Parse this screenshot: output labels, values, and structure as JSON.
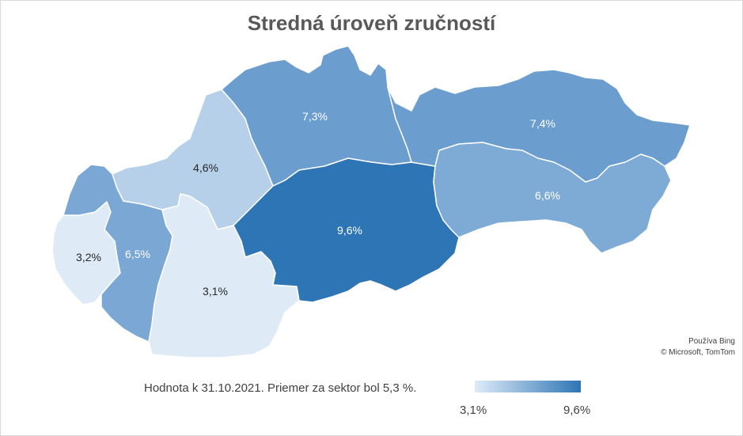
{
  "title": "Stredná úroveň zručností",
  "caption": "Hodnota k 31.10.2021. Priemer za sektor bol 5,3 %.",
  "attribution": {
    "line1": "Používa Bing",
    "line2": "© Microsoft, TomTom"
  },
  "legend": {
    "min_label": "3,1%",
    "max_label": "9,6%",
    "min_color": "#deebf7",
    "max_color": "#2e75b6"
  },
  "regions": [
    {
      "id": "bratislava",
      "value_label": "3,2%",
      "value": 3.2,
      "color": "#deebf7",
      "label_color": "#262626"
    },
    {
      "id": "trnava",
      "value_label": "6,5%",
      "value": 6.5,
      "color": "#7ba7d4",
      "label_color": "#ffffff"
    },
    {
      "id": "trencin",
      "value_label": "4,6%",
      "value": 4.6,
      "color": "#b6d0ea",
      "label_color": "#262626"
    },
    {
      "id": "nitra",
      "value_label": "3,1%",
      "value": 3.1,
      "color": "#deebf7",
      "label_color": "#262626"
    },
    {
      "id": "zilina",
      "value_label": "7,3%",
      "value": 7.3,
      "color": "#6b9dcf",
      "label_color": "#ffffff"
    },
    {
      "id": "banska-bystrica",
      "value_label": "9,6%",
      "value": 9.6,
      "color": "#2e75b6",
      "label_color": "#ffffff"
    },
    {
      "id": "presov",
      "value_label": "7,4%",
      "value": 7.4,
      "color": "#6b9dcf",
      "label_color": "#ffffff"
    },
    {
      "id": "kosice",
      "value_label": "6,6%",
      "value": 6.6,
      "color": "#7eabd6",
      "label_color": "#ffffff"
    }
  ]
}
